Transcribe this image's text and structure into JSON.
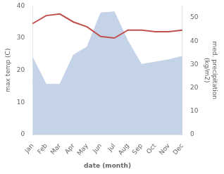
{
  "chart_data": {
    "type": "line",
    "categories": [
      "Jan",
      "Feb",
      "Mar",
      "Apr",
      "May",
      "Jun",
      "Jul",
      "Aug",
      "Sep",
      "Oct",
      "Nov",
      "Dec"
    ],
    "series": [
      {
        "type": "area",
        "color": "#c5d3e8",
        "axis": "y2",
        "values": [
          33.0,
          21.5,
          21.5,
          34.0,
          37.5,
          52.0,
          52.5,
          40.0,
          30.0,
          31.0,
          32.0,
          33.5
        ]
      },
      {
        "type": "line",
        "color": "#c0504d",
        "axis": "y",
        "values": [
          34.5,
          37.0,
          37.5,
          35.0,
          33.5,
          30.5,
          30.0,
          32.5,
          32.5,
          32.0,
          32.0,
          32.5
        ]
      }
    ],
    "xlabel": "date (month)",
    "ylabel": "max temp (C)",
    "y2label": "med. precipitation\n(kg/m2)",
    "ylim": [
      0,
      40
    ],
    "yticks": [
      0,
      10,
      20,
      30,
      40
    ],
    "y2lim": [
      0,
      55
    ],
    "y2ticks": [
      0,
      10,
      20,
      30,
      40,
      50
    ],
    "grid": false
  }
}
